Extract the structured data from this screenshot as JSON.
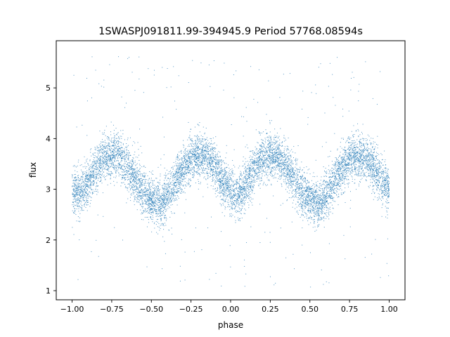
{
  "chart_data": {
    "type": "scatter",
    "title": "1SWASPJ091811.99-394945.9 Period 57768.08594s",
    "xlabel": "phase",
    "ylabel": "flux",
    "xlim": [
      -1.1,
      1.1
    ],
    "ylim": [
      0.82,
      5.93
    ],
    "xticks": [
      -1.0,
      -0.75,
      -0.5,
      -0.25,
      0.0,
      0.25,
      0.5,
      0.75,
      1.0
    ],
    "xtick_labels": [
      "−1.00",
      "−0.75",
      "−0.50",
      "−0.25",
      "0.00",
      "0.25",
      "0.50",
      "0.75",
      "1.00"
    ],
    "yticks": [
      1,
      2,
      3,
      4,
      5
    ],
    "ytick_labels": [
      "1",
      "2",
      "3",
      "4",
      "5"
    ],
    "grid": false,
    "marker_color": "#1f77b4",
    "series": [
      {
        "name": "",
        "trend": {
          "x": [
            -1.0,
            -0.95,
            -0.9,
            -0.85,
            -0.8,
            -0.75,
            -0.7,
            -0.65,
            -0.6,
            -0.55,
            -0.5,
            -0.45,
            -0.4,
            -0.35,
            -0.3,
            -0.25,
            -0.2,
            -0.15,
            -0.1,
            -0.05,
            0.0,
            0.05,
            0.1,
            0.15,
            0.2,
            0.25,
            0.3,
            0.35,
            0.4,
            0.45,
            0.5,
            0.55,
            0.6,
            0.65,
            0.7,
            0.75,
            0.8,
            0.85,
            0.9,
            0.95,
            1.0
          ],
          "y": [
            2.95,
            2.9,
            3.15,
            3.4,
            3.6,
            3.7,
            3.65,
            3.45,
            3.2,
            2.95,
            2.8,
            2.7,
            2.85,
            3.15,
            3.4,
            3.6,
            3.7,
            3.65,
            3.45,
            3.15,
            2.95,
            2.85,
            3.1,
            3.4,
            3.6,
            3.7,
            3.65,
            3.45,
            3.2,
            2.95,
            2.8,
            2.7,
            2.85,
            3.15,
            3.4,
            3.6,
            3.7,
            3.65,
            3.45,
            3.2,
            3.0
          ]
        },
        "scatter_sigma": 0.22,
        "n_points": 9000,
        "outlier_fraction": 0.03,
        "outlier_range": [
          1.05,
          5.7
        ]
      }
    ]
  }
}
